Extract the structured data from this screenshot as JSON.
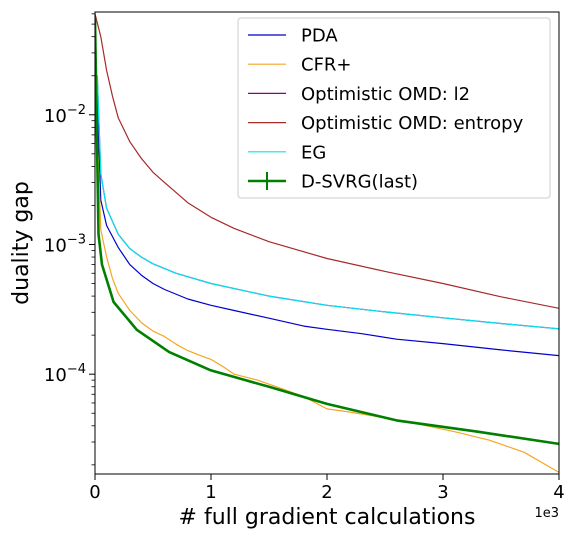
{
  "chart_data": {
    "type": "line",
    "title": "",
    "xlabel": "# full gradient calculations",
    "ylabel": "duality gap",
    "x_offset_text": "1e3",
    "xlim": [
      0,
      4000
    ],
    "ylim": [
      1.7e-05,
      0.062
    ],
    "yscale": "log",
    "x_ticks": [
      {
        "value": 0,
        "label": "0"
      },
      {
        "value": 1000,
        "label": "1"
      },
      {
        "value": 2000,
        "label": "2"
      },
      {
        "value": 3000,
        "label": "3"
      },
      {
        "value": 4000,
        "label": "4"
      }
    ],
    "y_ticks": [
      {
        "value": 0.0001,
        "mant": "10",
        "exp": "−4"
      },
      {
        "value": 0.001,
        "mant": "10",
        "exp": "−3"
      },
      {
        "value": 0.01,
        "mant": "10",
        "exp": "−2"
      }
    ],
    "grid": false,
    "legend_position": "upper right",
    "series": [
      {
        "name": "PDA",
        "color": "#0000cc",
        "width": 1.2,
        "points": [
          [
            20,
            0.012
          ],
          [
            50,
            0.0022
          ],
          [
            100,
            0.0014
          ],
          [
            200,
            0.00095
          ],
          [
            300,
            0.0007
          ],
          [
            400,
            0.00058
          ],
          [
            500,
            0.0005
          ],
          [
            600,
            0.00045
          ],
          [
            800,
            0.00038
          ],
          [
            1000,
            0.00034
          ],
          [
            1200,
            0.00031
          ],
          [
            1500,
            0.00027
          ],
          [
            1800,
            0.000235
          ],
          [
            2000,
            0.000222
          ],
          [
            2300,
            0.000205
          ],
          [
            2600,
            0.000186
          ],
          [
            3000,
            0.000172
          ],
          [
            3500,
            0.000154
          ],
          [
            4000,
            0.000139
          ]
        ]
      },
      {
        "name": "CFR+",
        "color": "#f5a623",
        "width": 1.2,
        "points": [
          [
            20,
            0.007
          ],
          [
            50,
            0.0013
          ],
          [
            100,
            0.0008
          ],
          [
            150,
            0.00055
          ],
          [
            200,
            0.00042
          ],
          [
            300,
            0.00031
          ],
          [
            400,
            0.00025
          ],
          [
            500,
            0.000215
          ],
          [
            600,
            0.000195
          ],
          [
            700,
            0.00017
          ],
          [
            800,
            0.000152
          ],
          [
            900,
            0.00014
          ],
          [
            1000,
            0.00013
          ],
          [
            1100,
            0.000115
          ],
          [
            1200,
            0.0001
          ],
          [
            1400,
            9e-05
          ],
          [
            1600,
            7.8e-05
          ],
          [
            1800,
            6.7e-05
          ],
          [
            2000,
            5.4e-05
          ],
          [
            2200,
            5.1e-05
          ],
          [
            2500,
            4.6e-05
          ],
          [
            2800,
            4.1e-05
          ],
          [
            3100,
            3.6e-05
          ],
          [
            3400,
            3.1e-05
          ],
          [
            3700,
            2.5e-05
          ],
          [
            4000,
            1.75e-05
          ]
        ]
      },
      {
        "name": "Optimistic OMD: l2",
        "color": "#8b008b",
        "width": 1.2,
        "points": [
          [
            20,
            0.02
          ],
          [
            50,
            0.0035
          ],
          [
            100,
            0.0019
          ],
          [
            200,
            0.0012
          ],
          [
            300,
            0.00093
          ],
          [
            400,
            0.0008
          ],
          [
            500,
            0.00071
          ],
          [
            700,
            0.0006
          ],
          [
            1000,
            0.0005
          ],
          [
            1500,
            0.0004
          ],
          [
            2000,
            0.00034
          ],
          [
            2500,
            0.000302
          ],
          [
            3000,
            0.000272
          ],
          [
            3500,
            0.000246
          ],
          [
            4000,
            0.000224
          ]
        ]
      },
      {
        "name": "Optimistic OMD: entropy",
        "color": "#a52a2a",
        "width": 1.2,
        "points": [
          [
            0,
            0.06
          ],
          [
            50,
            0.04
          ],
          [
            100,
            0.022
          ],
          [
            150,
            0.014
          ],
          [
            200,
            0.0095
          ],
          [
            300,
            0.0062
          ],
          [
            400,
            0.0046
          ],
          [
            500,
            0.0036
          ],
          [
            600,
            0.003
          ],
          [
            800,
            0.0021
          ],
          [
            1000,
            0.00162
          ],
          [
            1200,
            0.00133
          ],
          [
            1500,
            0.00105
          ],
          [
            2000,
            0.00078
          ],
          [
            2500,
            0.00062
          ],
          [
            3000,
            0.0005
          ],
          [
            3500,
            0.000395
          ],
          [
            4000,
            0.000322
          ]
        ]
      },
      {
        "name": "EG",
        "color": "#00e5ee",
        "width": 1.2,
        "points": [
          [
            20,
            0.02
          ],
          [
            50,
            0.0035
          ],
          [
            100,
            0.0019
          ],
          [
            200,
            0.0012
          ],
          [
            300,
            0.00093
          ],
          [
            400,
            0.0008
          ],
          [
            500,
            0.00071
          ],
          [
            700,
            0.0006
          ],
          [
            1000,
            0.0005
          ],
          [
            1500,
            0.0004
          ],
          [
            2000,
            0.00034
          ],
          [
            2500,
            0.000302
          ],
          [
            3000,
            0.000272
          ],
          [
            3500,
            0.000246
          ],
          [
            4000,
            0.000224
          ]
        ]
      },
      {
        "name": "D-SVRG(last)",
        "color": "#008000",
        "width": 2.6,
        "errorbar": true,
        "points": [
          [
            0,
            0.055
          ],
          [
            30,
            0.0012
          ],
          [
            60,
            0.0007
          ],
          [
            160,
            0.00036
          ],
          [
            360,
            0.00022
          ],
          [
            640,
            0.000148
          ],
          [
            1000,
            0.000107
          ],
          [
            1500,
            8e-05
          ],
          [
            2000,
            5.9e-05
          ],
          [
            2600,
            4.4e-05
          ],
          [
            3300,
            3.6e-05
          ],
          [
            4000,
            2.9e-05
          ]
        ]
      }
    ]
  }
}
